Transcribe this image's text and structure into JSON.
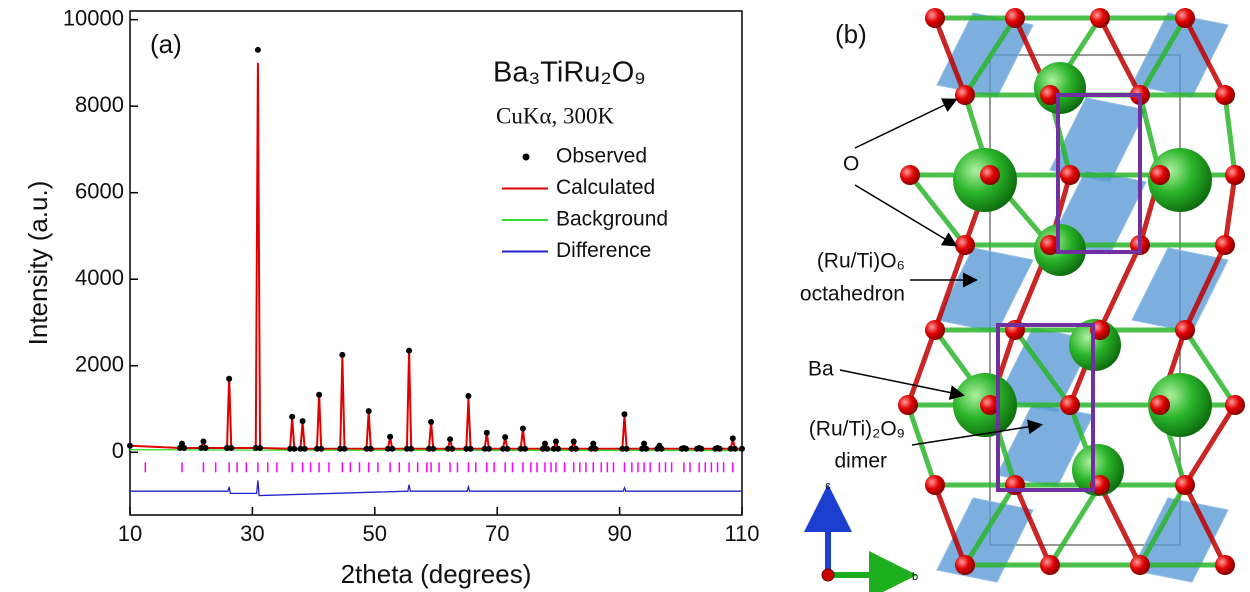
{
  "chart_data": {
    "type": "line",
    "annotations": [
      "(a)",
      "Ba₃TiRu₂O₉",
      "CuKα, 300K"
    ],
    "x_label": "2theta (degrees)",
    "y_label": "Intensity (a.u.)",
    "xlim": [
      10,
      110
    ],
    "xticks": [
      10,
      30,
      50,
      70,
      90,
      110
    ],
    "ylim": [
      -1450,
      10200
    ],
    "yticks": [
      0,
      2000,
      4000,
      6000,
      8000,
      10000
    ],
    "x": [
      10,
      18.15,
      18.5,
      18.85,
      21.65,
      22,
      22.35,
      25.85,
      26.2,
      26.55,
      30.55,
      30.9,
      31.25,
      36.15,
      36.5,
      36.85,
      37.85,
      38.2,
      38.55,
      40.55,
      40.9,
      41.25,
      44.35,
      44.7,
      45.05,
      48.65,
      49,
      49.35,
      52.15,
      52.5,
      52.85,
      55.25,
      55.6,
      55.95,
      58.85,
      59.2,
      59.55,
      61.95,
      62.3,
      62.65,
      64.95,
      65.3,
      65.65,
      67.95,
      68.3,
      68.65,
      70.95,
      71.3,
      71.65,
      73.85,
      74.2,
      74.55,
      77.45,
      77.8,
      78.15,
      79.25,
      79.6,
      79.95,
      82.15,
      82.5,
      82.85,
      85.35,
      85.7,
      86.05,
      90.45,
      90.8,
      91.15,
      93.65,
      94,
      94.35,
      96.15,
      96.5,
      96.85,
      100.15,
      100.5,
      100.85,
      102.65,
      103,
      103.35,
      105.65,
      106,
      106.35,
      108.15,
      108.5,
      108.85,
      110
    ],
    "series": [
      {
        "name": "Observed",
        "color": "#000000",
        "mode": "markers",
        "values": [
          150,
          100,
          200,
          100,
          100,
          250,
          100,
          100,
          1700,
          100,
          100,
          9300,
          100,
          80,
          820,
          80,
          80,
          720,
          80,
          80,
          1330,
          80,
          80,
          2250,
          80,
          80,
          950,
          80,
          80,
          360,
          80,
          80,
          2350,
          80,
          80,
          700,
          80,
          80,
          300,
          80,
          80,
          1300,
          80,
          80,
          450,
          80,
          80,
          350,
          80,
          80,
          550,
          80,
          80,
          200,
          80,
          80,
          250,
          80,
          80,
          250,
          80,
          80,
          200,
          80,
          80,
          880,
          80,
          80,
          200,
          80,
          80,
          150,
          80,
          80,
          100,
          80,
          80,
          100,
          80,
          80,
          100,
          80,
          80,
          320,
          80,
          80
        ]
      },
      {
        "name": "Calculated",
        "color": "#e00000",
        "mode": "line",
        "values": [
          150,
          100,
          200,
          100,
          100,
          250,
          100,
          100,
          1750,
          100,
          100,
          9000,
          100,
          80,
          800,
          80,
          80,
          700,
          80,
          80,
          1350,
          80,
          80,
          2200,
          80,
          80,
          950,
          80,
          80,
          350,
          80,
          80,
          2350,
          80,
          80,
          700,
          80,
          80,
          300,
          80,
          80,
          1250,
          80,
          80,
          450,
          80,
          80,
          350,
          80,
          80,
          550,
          80,
          80,
          200,
          80,
          80,
          250,
          80,
          80,
          250,
          80,
          80,
          200,
          80,
          80,
          850,
          80,
          80,
          200,
          80,
          80,
          150,
          80,
          80,
          100,
          80,
          80,
          100,
          80,
          80,
          100,
          80,
          80,
          300,
          80,
          80
        ]
      },
      {
        "name": "Background",
        "color": "#33dd33",
        "mode": "line",
        "x": [
          10,
          30,
          110
        ],
        "values": [
          60,
          50,
          40
        ]
      },
      {
        "name": "Difference",
        "color": "#2222cc",
        "mode": "line",
        "x": [
          10,
          26,
          26.2,
          26.4,
          30.7,
          30.9,
          31.1,
          55.4,
          55.6,
          55.8,
          65.1,
          65.3,
          65.5,
          90.6,
          90.8,
          91,
          110
        ],
        "values": [
          -900,
          -900,
          -800,
          -950,
          -950,
          -650,
          -1000,
          -900,
          -750,
          -900,
          -900,
          -800,
          -900,
          -900,
          -820,
          -900,
          -900
        ]
      }
    ],
    "reflections": {
      "color": "#ff00ff",
      "x": [
        12.5,
        18.5,
        22,
        24,
        26.2,
        27.5,
        29,
        30.9,
        32.5,
        34,
        36.5,
        38.2,
        39.5,
        40.9,
        42.5,
        44.7,
        46,
        47.5,
        49,
        50.5,
        52.5,
        54,
        55.6,
        57,
        58.5,
        59.2,
        60.5,
        62.3,
        63.5,
        65.3,
        66.5,
        68.3,
        69.5,
        71.3,
        72.5,
        74.2,
        75.5,
        76.5,
        77.8,
        78.8,
        79.6,
        81,
        82.5,
        83.5,
        84.5,
        85.7,
        87,
        88,
        89,
        90.8,
        92,
        93,
        94,
        95,
        96.5,
        97.5,
        98.5,
        100.5,
        101.5,
        103,
        104,
        105,
        106,
        107,
        108.5
      ]
    }
  },
  "structure": {
    "panel": "(b)",
    "labels": [
      "O",
      "(Ru/Ti)O₆",
      "octahedron",
      "Ba",
      "(Ru/Ti)₂O₉",
      "dimer"
    ],
    "axes": [
      "c",
      "b"
    ]
  }
}
